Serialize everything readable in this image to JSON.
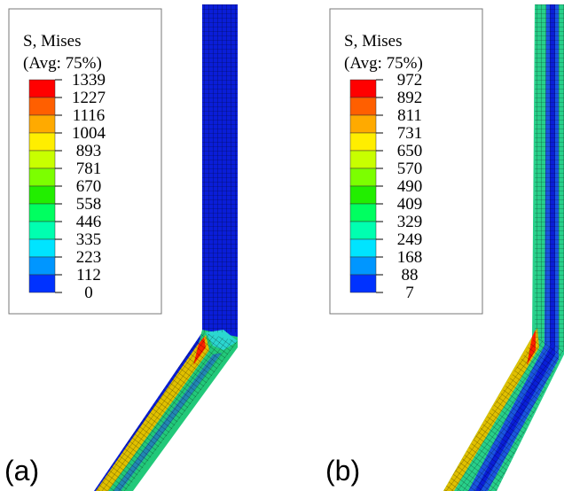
{
  "panels": [
    {
      "label": "(a)",
      "legend": {
        "title": "S, Mises",
        "subtitle": "(Avg: 75%)",
        "values": [
          1339,
          1227,
          1116,
          1004,
          893,
          781,
          670,
          558,
          446,
          335,
          223,
          112,
          0
        ]
      }
    },
    {
      "label": "(b)",
      "legend": {
        "title": "S, Mises",
        "subtitle": "(Avg: 75%)",
        "values": [
          972,
          892,
          811,
          731,
          650,
          570,
          490,
          409,
          329,
          249,
          168,
          88,
          7
        ]
      }
    }
  ]
}
